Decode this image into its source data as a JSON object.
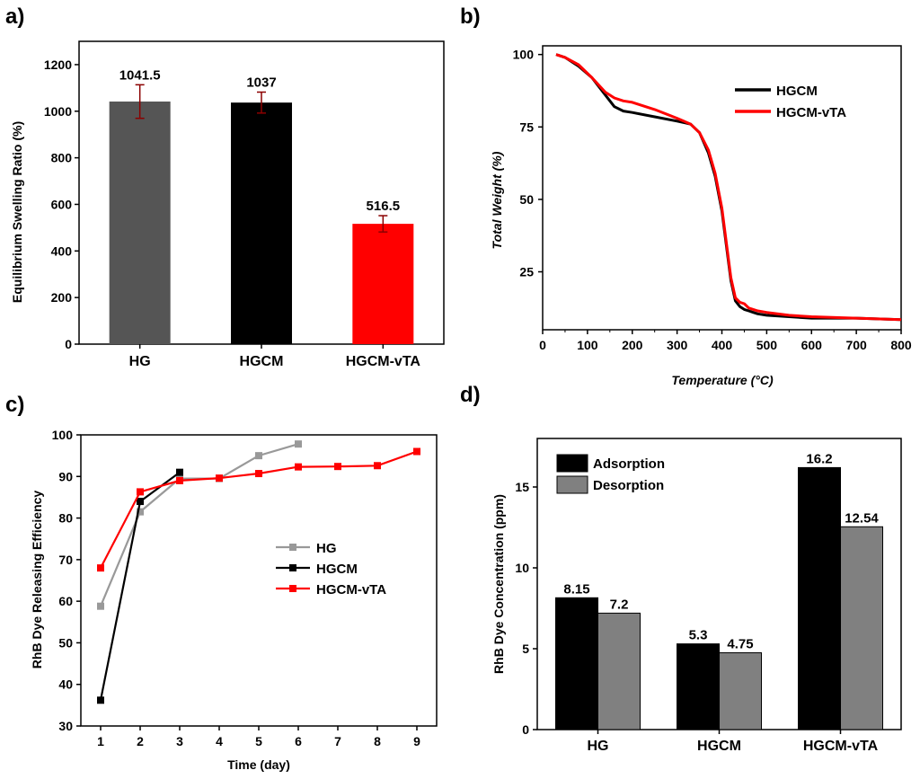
{
  "chart_data": [
    {
      "panel": "a)",
      "type": "bar",
      "title": "",
      "xlabel": "",
      "ylabel": "Equilibrium Swelling Ratio (%)",
      "ylim": [
        0,
        1300
      ],
      "yticks": [
        0,
        200,
        400,
        600,
        800,
        1000,
        1200
      ],
      "categories": [
        "HG",
        "HGCM",
        "HGCM-vTA"
      ],
      "values": [
        1041.5,
        1037,
        516.5
      ],
      "value_labels": [
        "1041.5",
        "1037",
        "516.5"
      ],
      "errors": [
        72,
        45,
        35
      ],
      "colors": [
        "#555555",
        "#000000",
        "#ff0000"
      ],
      "error_color": "#8b0000"
    },
    {
      "panel": "b)",
      "type": "line",
      "xlabel": "Temperature (°C)",
      "ylabel": "Total Weight (%)",
      "xlim": [
        0,
        800
      ],
      "ylim": [
        5,
        103
      ],
      "xticks": [
        0,
        100,
        200,
        300,
        400,
        500,
        600,
        700,
        800
      ],
      "yticks": [
        25,
        50,
        75,
        100
      ],
      "legend": "top-right",
      "series": [
        {
          "name": "HGCM",
          "color": "#000000",
          "x": [
            30,
            50,
            80,
            110,
            140,
            160,
            180,
            200,
            250,
            300,
            330,
            350,
            370,
            385,
            400,
            410,
            420,
            430,
            440,
            450,
            460,
            470,
            480,
            500,
            550,
            600,
            700,
            800
          ],
          "y": [
            100,
            99,
            96,
            92,
            86,
            82,
            80.5,
            80,
            78.5,
            77,
            76,
            73,
            66,
            58,
            46,
            34,
            22,
            15,
            13,
            12,
            11.5,
            11,
            10.5,
            10,
            9.5,
            9,
            9,
            8.5
          ]
        },
        {
          "name": "HGCM-vTA",
          "color": "#ff0000",
          "x": [
            30,
            50,
            80,
            110,
            140,
            160,
            180,
            200,
            250,
            300,
            330,
            350,
            370,
            385,
            400,
            410,
            420,
            430,
            440,
            450,
            460,
            470,
            480,
            500,
            550,
            600,
            700,
            800
          ],
          "y": [
            100,
            99,
            96.5,
            92,
            87,
            85,
            84,
            83.5,
            81,
            78,
            76,
            73,
            67,
            59,
            47,
            35,
            23,
            16,
            14.5,
            14,
            12.5,
            12,
            11.5,
            11,
            10,
            9.5,
            9,
            8.5
          ]
        }
      ]
    },
    {
      "panel": "c)",
      "type": "line",
      "xlabel": "Time (day)",
      "ylabel": "RhB Dye Releasing Efficiency",
      "xlim": [
        0.5,
        9.5
      ],
      "ylim": [
        30,
        100
      ],
      "xticks": [
        1,
        2,
        3,
        4,
        5,
        6,
        7,
        8,
        9
      ],
      "yticks": [
        30,
        40,
        50,
        60,
        70,
        80,
        90,
        100
      ],
      "legend": "center-right",
      "series": [
        {
          "name": "HG",
          "color": "#999999",
          "x": [
            1,
            2,
            3,
            4,
            5,
            6
          ],
          "y": [
            58.8,
            81.5,
            89.5,
            89.5,
            95,
            97.8
          ]
        },
        {
          "name": "HGCM",
          "color": "#000000",
          "x": [
            1,
            2,
            3
          ],
          "y": [
            36.2,
            84,
            91
          ]
        },
        {
          "name": "HGCM-vTA",
          "color": "#ff0000",
          "x": [
            1,
            2,
            3,
            4,
            5,
            6,
            7,
            8,
            9
          ],
          "y": [
            68,
            86.3,
            89,
            89.6,
            90.7,
            92.3,
            92.4,
            92.6,
            96
          ]
        }
      ]
    },
    {
      "panel": "d)",
      "type": "bar",
      "xlabel": "",
      "ylabel": "RhB Dye Concentration (ppm)",
      "ylim": [
        0,
        18
      ],
      "yticks": [
        0,
        5,
        10,
        15
      ],
      "categories": [
        "HG",
        "HGCM",
        "HGCM-vTA"
      ],
      "legend": "top-left",
      "series": [
        {
          "name": "Adsorption",
          "color": "#000000",
          "values": [
            8.15,
            5.3,
            16.2
          ],
          "labels": [
            "8.15",
            "5.3",
            "16.2"
          ]
        },
        {
          "name": "Desorption",
          "color": "#808080",
          "values": [
            7.2,
            4.75,
            12.54
          ],
          "labels": [
            "7.2",
            "4.75",
            "12.54"
          ]
        }
      ]
    }
  ]
}
